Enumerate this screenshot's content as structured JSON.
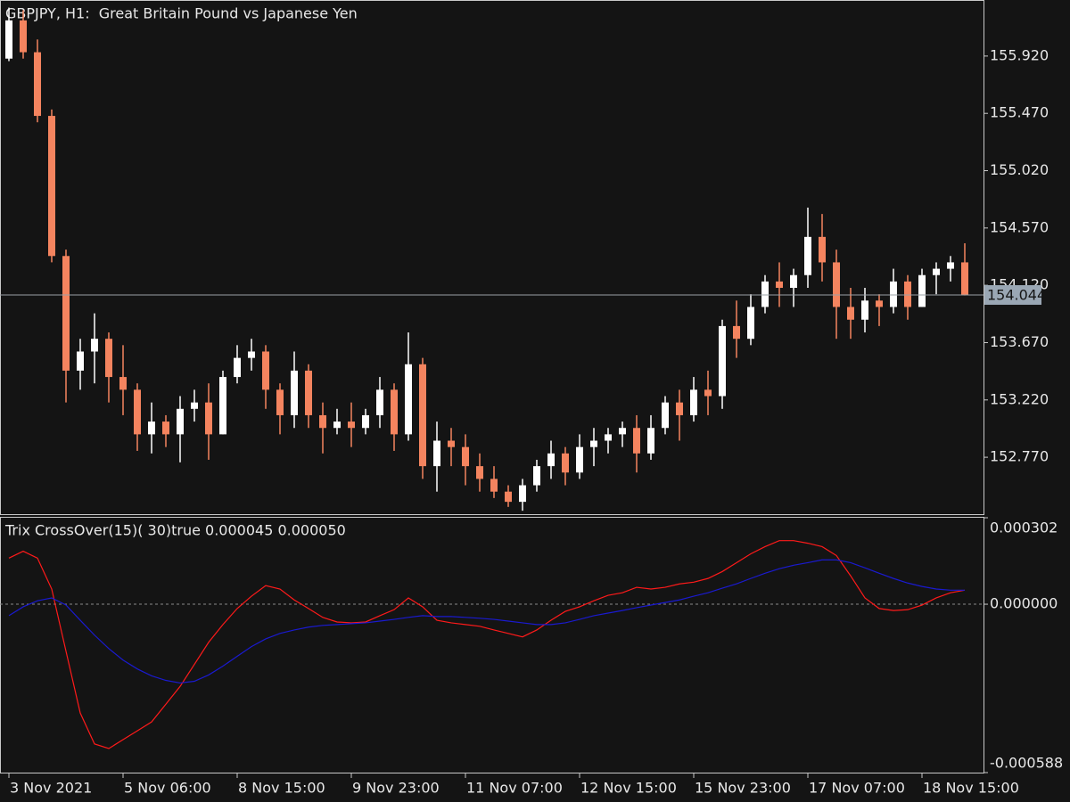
{
  "chart_data": [
    {
      "type": "candlestick",
      "title": "GBPJPY, H1:  Great Britain Pound vs Japanese Yen",
      "categories": [
        "3 Nov 2021",
        null,
        null,
        null,
        null,
        null,
        null,
        null,
        "5 Nov 06:00",
        null,
        null,
        null,
        null,
        null,
        null,
        null,
        "8 Nov 15:00",
        null,
        null,
        null,
        null,
        null,
        null,
        null,
        "9 Nov 23:00",
        null,
        null,
        null,
        null,
        null,
        null,
        null,
        "11 Nov 07:00",
        null,
        null,
        null,
        null,
        null,
        null,
        null,
        "12 Nov 15:00",
        null,
        null,
        null,
        null,
        null,
        null,
        null,
        "15 Nov 23:00",
        null,
        null,
        null,
        null,
        null,
        null,
        null,
        "17 Nov 07:00",
        null,
        null,
        null,
        null,
        null,
        null,
        null,
        "18 Nov 15:00",
        null,
        null,
        null
      ],
      "open": [
        155.9,
        156.2,
        155.95,
        155.45,
        154.35,
        153.45,
        153.6,
        153.7,
        153.4,
        153.3,
        152.95,
        153.05,
        152.95,
        153.15,
        153.2,
        152.95,
        153.4,
        153.55,
        153.6,
        153.3,
        153.1,
        153.45,
        153.1,
        153.0,
        153.05,
        153.0,
        153.1,
        153.3,
        152.95,
        153.5,
        152.7,
        152.9,
        152.85,
        152.7,
        152.6,
        152.5,
        152.42,
        152.55,
        152.7,
        152.8,
        152.65,
        152.85,
        152.9,
        152.95,
        153.0,
        152.8,
        153.0,
        153.2,
        153.1,
        153.3,
        153.25,
        153.8,
        153.7,
        153.95,
        154.15,
        154.1,
        154.2,
        154.5,
        154.3,
        153.95,
        153.85,
        154.0,
        153.95,
        154.15,
        153.95,
        154.2,
        154.25,
        154.3
      ],
      "high": [
        156.3,
        156.28,
        156.05,
        155.5,
        154.4,
        153.7,
        153.9,
        153.75,
        153.65,
        153.35,
        153.2,
        153.1,
        153.25,
        153.3,
        153.35,
        153.45,
        153.65,
        153.7,
        153.65,
        153.35,
        153.6,
        153.5,
        153.2,
        153.15,
        153.2,
        153.15,
        153.4,
        153.35,
        153.75,
        153.55,
        153.05,
        153.0,
        152.95,
        152.8,
        152.7,
        152.55,
        152.6,
        152.75,
        152.9,
        152.85,
        152.95,
        153.0,
        153.0,
        153.05,
        153.1,
        153.1,
        153.25,
        153.3,
        153.4,
        153.45,
        153.85,
        154.0,
        154.05,
        154.2,
        154.3,
        154.25,
        154.73,
        154.68,
        154.4,
        154.1,
        154.1,
        154.05,
        154.25,
        154.2,
        154.25,
        154.3,
        154.35,
        154.45
      ],
      "low": [
        155.88,
        155.9,
        155.4,
        154.3,
        153.2,
        153.3,
        153.35,
        153.2,
        153.1,
        152.82,
        152.8,
        152.85,
        152.73,
        153.05,
        152.75,
        152.95,
        153.35,
        153.45,
        153.15,
        152.95,
        153.0,
        153.0,
        152.8,
        152.95,
        152.85,
        152.95,
        153.0,
        152.82,
        152.9,
        152.6,
        152.5,
        152.7,
        152.55,
        152.5,
        152.45,
        152.38,
        152.35,
        152.5,
        152.6,
        152.55,
        152.6,
        152.7,
        152.8,
        152.85,
        152.65,
        152.75,
        152.95,
        152.9,
        153.05,
        153.1,
        153.15,
        153.55,
        153.65,
        153.9,
        153.95,
        153.95,
        154.1,
        154.15,
        153.7,
        153.7,
        153.75,
        153.8,
        153.9,
        153.85,
        153.95,
        154.05,
        154.15,
        154.04
      ],
      "close": [
        156.2,
        155.95,
        155.45,
        154.35,
        153.45,
        153.6,
        153.7,
        153.4,
        153.3,
        152.95,
        153.05,
        152.95,
        153.15,
        153.2,
        152.95,
        153.4,
        153.55,
        153.6,
        153.3,
        153.1,
        153.45,
        153.1,
        153.0,
        153.05,
        153.0,
        153.1,
        153.3,
        152.95,
        153.5,
        152.7,
        152.9,
        152.85,
        152.7,
        152.6,
        152.5,
        152.42,
        152.55,
        152.7,
        152.8,
        152.65,
        152.85,
        152.9,
        152.95,
        153.0,
        152.8,
        153.0,
        153.2,
        153.1,
        153.3,
        153.25,
        153.8,
        153.7,
        153.95,
        154.15,
        154.1,
        154.2,
        154.5,
        154.3,
        153.95,
        153.85,
        154.0,
        153.95,
        154.15,
        153.95,
        154.2,
        154.25,
        154.3,
        154.044
      ],
      "up_color": "#ffffff",
      "down_color": "#f4845f",
      "ylim": [
        152.323,
        156.353
      ],
      "yticks": [
        {
          "value": 152.77,
          "label": "152.770"
        },
        {
          "value": 153.22,
          "label": "153.220"
        },
        {
          "value": 153.67,
          "label": "153.670"
        },
        {
          "value": 154.12,
          "label": "154.120"
        },
        {
          "value": 154.57,
          "label": "154.570"
        },
        {
          "value": 155.02,
          "label": "155.020"
        },
        {
          "value": 155.47,
          "label": "155.470"
        },
        {
          "value": 155.92,
          "label": "155.920"
        }
      ],
      "current_price": 154.044
    },
    {
      "type": "line",
      "title": "Trix CrossOver(15)( 30)true 0.000045 0.000050",
      "series": [
        {
          "color": "#ff1a1a",
          "values": [
            0.000161,
            0.000185,
            0.000161,
            5.3e-05,
            -0.000164,
            -0.00038,
            -0.000488,
            -0.000504,
            -0.000473,
            -0.000442,
            -0.000411,
            -0.000349,
            -0.000287,
            -0.00021,
            -0.000133,
            -7.1e-05,
            -1.5e-05,
            2.8e-05,
            6.5e-05,
            5.3e-05,
            1.5e-05,
            -1.5e-05,
            -4.6e-05,
            -6.2e-05,
            -6.5e-05,
            -6.2e-05,
            -4e-05,
            -1.9e-05,
            2.2e-05,
            -9e-06,
            -5.6e-05,
            -6.5e-05,
            -7.1e-05,
            -7.7e-05,
            -9e-05,
            -0.000102,
            -0.000114,
            -9e-05,
            -5.6e-05,
            -2.5e-05,
            -9e-06,
            1.2e-05,
            3.1e-05,
            4e-05,
            5.9e-05,
            5.3e-05,
            5.9e-05,
            7.1e-05,
            7.7e-05,
            9e-05,
            0.000114,
            0.000145,
            0.000176,
            0.000201,
            0.000222,
            0.000222,
            0.000213,
            0.000201,
            0.00017,
            9.9e-05,
            2.2e-05,
            -1.5e-05,
            -2.2e-05,
            -1.9e-05,
            -3e-06,
            2.2e-05,
            4e-05,
            4.9e-05
          ]
        },
        {
          "color": "#1a1ad0",
          "values": [
            -4e-05,
            -9e-06,
            1.2e-05,
            2.2e-05,
            -3e-06,
            -5.6e-05,
            -0.000108,
            -0.000155,
            -0.000195,
            -0.000226,
            -0.00025,
            -0.000266,
            -0.000275,
            -0.000269,
            -0.000247,
            -0.000216,
            -0.000182,
            -0.000148,
            -0.000121,
            -0.000102,
            -9e-05,
            -8e-05,
            -7.4e-05,
            -7.1e-05,
            -6.8e-05,
            -6.5e-05,
            -5.9e-05,
            -5.3e-05,
            -4.6e-05,
            -4e-05,
            -4.3e-05,
            -4.3e-05,
            -4.6e-05,
            -4.9e-05,
            -5.3e-05,
            -5.9e-05,
            -6.5e-05,
            -7.1e-05,
            -7.1e-05,
            -6.5e-05,
            -5.3e-05,
            -4e-05,
            -3.1e-05,
            -2.2e-05,
            -1.2e-05,
            -3e-06,
            6e-06,
            1.5e-05,
            2.8e-05,
            4e-05,
            5.6e-05,
            7.1e-05,
            9e-05,
            0.000108,
            0.000124,
            0.000136,
            0.000145,
            0.000155,
            0.000155,
            0.000145,
            0.000127,
            0.000108,
            9e-05,
            7.4e-05,
            6.2e-05,
            5.3e-05,
            4.9e-05,
            4.9e-05
          ]
        }
      ],
      "ylim": [
        -0.000588,
        0.000302
      ],
      "yticks": [
        -0.000588,
        {
          "value": 0,
          "label": "0.000000"
        },
        0.000302
      ],
      "levels": [
        0
      ]
    }
  ]
}
